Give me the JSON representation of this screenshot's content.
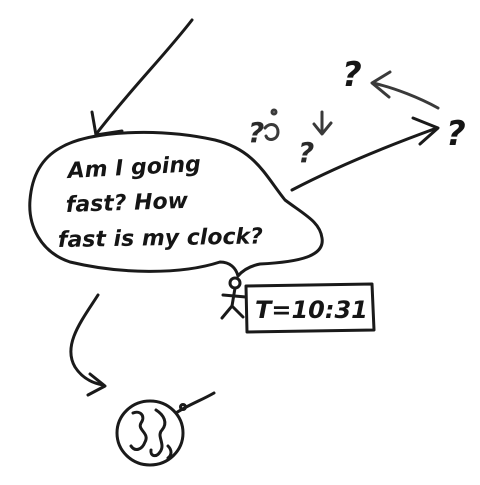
{
  "speech_bubble": {
    "line1": "Am I going",
    "line2": "fast? How",
    "line3": "fast is my clock?"
  },
  "clock_readout": "T=10:31",
  "question_marks": {
    "top": "?",
    "right": "?",
    "cluster_left": "?",
    "cluster_right": "?"
  },
  "colors": {
    "ink": "#1a1a1a",
    "paper": "#ffffff"
  }
}
